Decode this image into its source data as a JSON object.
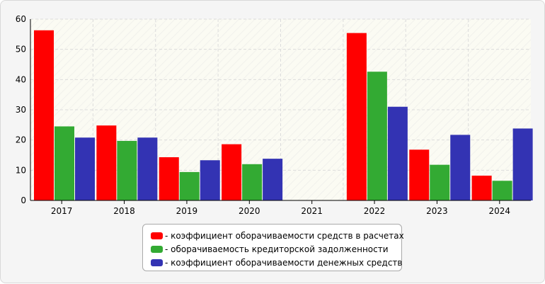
{
  "chart_data": {
    "type": "bar",
    "categories": [
      "2017",
      "2018",
      "2019",
      "2020",
      "2021",
      "2022",
      "2023",
      "2024"
    ],
    "series": [
      {
        "name": "- коэффициент оборачиваемости средств в расчетах",
        "color": "#ff0000",
        "values": [
          56.3,
          24.8,
          14.3,
          18.6,
          0,
          55.4,
          16.8,
          8.2
        ]
      },
      {
        "name": "- оборачиваемость кредиторской задолженности",
        "color": "#33aa33",
        "values": [
          24.5,
          19.7,
          9.4,
          12.0,
          0,
          42.6,
          11.8,
          6.5
        ]
      },
      {
        "name": "- коэффициент оборачиваемости денежных средств",
        "color": "#3333b3",
        "values": [
          20.8,
          20.8,
          13.3,
          13.8,
          0,
          31.0,
          21.7,
          23.8
        ]
      }
    ],
    "yticks": [
      "0",
      "10",
      "20",
      "30",
      "40",
      "50",
      "60"
    ],
    "ylim": [
      0,
      60
    ],
    "grid": true,
    "legend_position": "bottom-center",
    "title": "",
    "xlabel": "",
    "ylabel": ""
  }
}
